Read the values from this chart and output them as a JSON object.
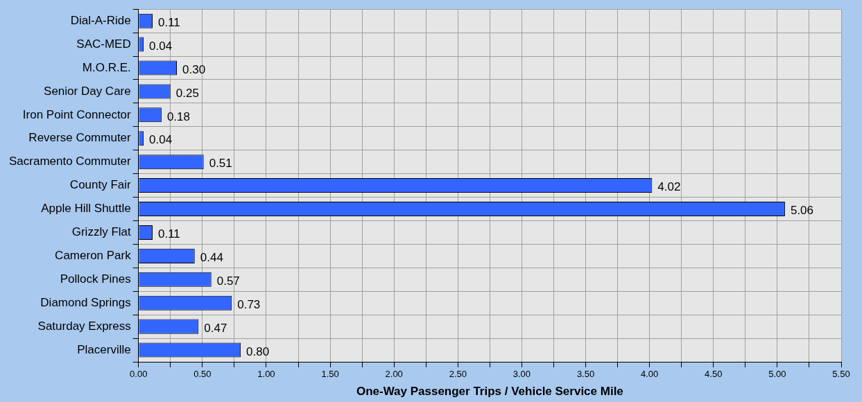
{
  "chart_data": {
    "type": "bar",
    "orientation": "horizontal",
    "xlabel": "One-Way Passenger Trips / Vehicle Service Mile",
    "categories": [
      "Dial-A-Ride",
      "SAC-MED",
      "M.O.R.E.",
      "Senior Day Care",
      "Iron Point Connector",
      "Reverse Commuter",
      "Sacramento Commuter",
      "County Fair",
      "Apple Hill Shuttle",
      "Grizzly Flat",
      "Cameron Park",
      "Pollock Pines",
      "Diamond Springs",
      "Saturday Express",
      "Placerville"
    ],
    "values": [
      0.11,
      0.04,
      0.3,
      0.25,
      0.18,
      0.04,
      0.51,
      4.02,
      5.06,
      0.11,
      0.44,
      0.57,
      0.73,
      0.47,
      0.8
    ],
    "value_labels": [
      "0.11",
      "0.04",
      "0.30",
      "0.25",
      "0.18",
      "0.04",
      "0.51",
      "4.02",
      "5.06",
      "0.11",
      "0.44",
      "0.57",
      "0.73",
      "0.47",
      "0.80"
    ],
    "color": "#3366ff",
    "xlim": [
      0,
      5.5
    ],
    "xticks": [
      {
        "value": 0,
        "label": "0.00"
      },
      {
        "value": 0.25,
        "label": null
      },
      {
        "value": 0.5,
        "label": "0.50"
      },
      {
        "value": 0.75,
        "label": null
      },
      {
        "value": 1,
        "label": "1.00"
      },
      {
        "value": 1.25,
        "label": null
      },
      {
        "value": 1.5,
        "label": "1.50"
      },
      {
        "value": 1.75,
        "label": null
      },
      {
        "value": 2,
        "label": "2.00"
      },
      {
        "value": 2.25,
        "label": null
      },
      {
        "value": 2.5,
        "label": "2.50"
      },
      {
        "value": 2.75,
        "label": null
      },
      {
        "value": 3,
        "label": "3.00"
      },
      {
        "value": 3.25,
        "label": null
      },
      {
        "value": 3.5,
        "label": "3.50"
      },
      {
        "value": 3.75,
        "label": null
      },
      {
        "value": 4,
        "label": "4.00"
      },
      {
        "value": 4.25,
        "label": null
      },
      {
        "value": 4.5,
        "label": "4.50"
      },
      {
        "value": 4.75,
        "label": null
      },
      {
        "value": 5,
        "label": "5.00"
      },
      {
        "value": 5.25,
        "label": null
      },
      {
        "value": 5.5,
        "label": "5.50"
      }
    ],
    "grid": true,
    "legend": false
  }
}
